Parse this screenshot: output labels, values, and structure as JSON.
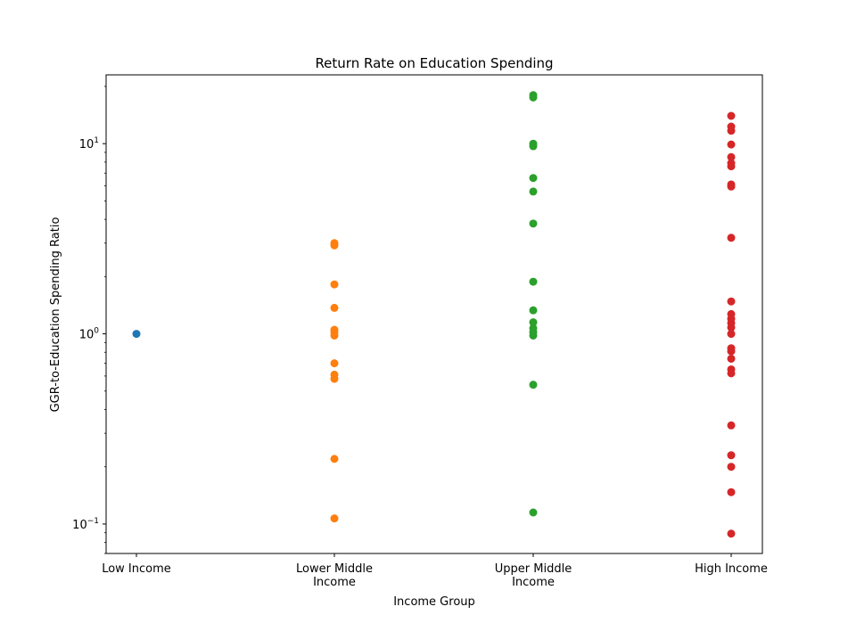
{
  "chart_data": {
    "type": "scatter",
    "title": "Return Rate on Education Spending",
    "xlabel": "Income Group",
    "ylabel": "GGR-to-Education Spending Ratio",
    "yscale": "log",
    "ylim": [
      0.07,
      23
    ],
    "grid": false,
    "categories": [
      [
        "Low Income"
      ],
      [
        "Lower Middle",
        "Income"
      ],
      [
        "Upper Middle",
        "Income"
      ],
      [
        "High Income"
      ]
    ],
    "y_ticks": [
      {
        "value": 0.1,
        "base": "10",
        "exp": "−1"
      },
      {
        "value": 1,
        "base": "10",
        "exp": "0"
      },
      {
        "value": 10,
        "base": "10",
        "exp": "1"
      }
    ],
    "series": [
      {
        "category_index": 0,
        "color": "#1f77b4",
        "values": [
          1.0
        ]
      },
      {
        "category_index": 1,
        "color": "#ff7f0e",
        "values": [
          3.0,
          2.92,
          1.82,
          1.37,
          1.05,
          1.02,
          0.98,
          0.7,
          0.61,
          0.58,
          0.22,
          0.107
        ]
      },
      {
        "category_index": 2,
        "color": "#2ca02c",
        "values": [
          18.0,
          17.5,
          10.0,
          9.7,
          6.6,
          5.6,
          3.8,
          1.88,
          1.33,
          1.15,
          1.07,
          1.02,
          0.98,
          0.54,
          0.115
        ]
      },
      {
        "category_index": 3,
        "color": "#d62728",
        "values": [
          14.0,
          12.3,
          11.7,
          9.9,
          8.5,
          7.9,
          7.6,
          6.1,
          5.95,
          3.2,
          1.48,
          1.27,
          1.2,
          1.14,
          1.08,
          1.0,
          0.84,
          0.81,
          0.74,
          0.65,
          0.62,
          0.33,
          0.23,
          0.2,
          0.147,
          0.089
        ]
      }
    ]
  }
}
